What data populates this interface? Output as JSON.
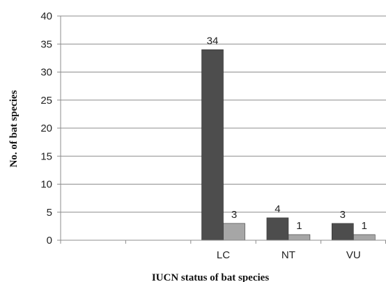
{
  "chart_data": {
    "type": "bar",
    "title": "",
    "xlabel": "IUCN status of bat species",
    "ylabel": "No. of bat species",
    "ylim": [
      0,
      40
    ],
    "yticks": [
      "0",
      "5",
      "10",
      "15",
      "20",
      "25",
      "30",
      "35",
      "40"
    ],
    "categories": [
      "",
      "",
      "LC",
      "NT",
      "VU"
    ],
    "series": [
      {
        "color": "#4d4d4d",
        "values": [
          null,
          null,
          34,
          4,
          3
        ]
      },
      {
        "color": "#a6a6a6",
        "values": [
          null,
          null,
          3,
          1,
          1
        ]
      }
    ],
    "data_labels": true,
    "grid": true,
    "legend": "none"
  }
}
